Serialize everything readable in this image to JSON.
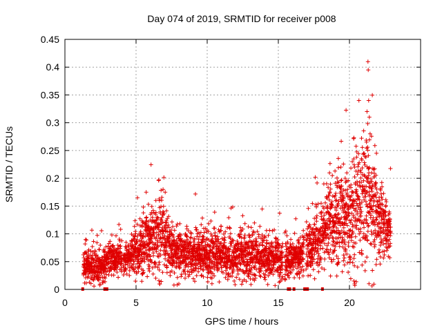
{
  "chart_data": {
    "type": "scatter",
    "title": "Day 074 of 2019, SRMTID for receiver p008",
    "xlabel": "GPS time / hours",
    "ylabel": "SRMTID / TECUs",
    "xlim": [
      0,
      25
    ],
    "ylim": [
      0,
      0.45
    ],
    "xticks": [
      0,
      5,
      10,
      15,
      20
    ],
    "xtick_labels": [
      "0",
      "5",
      "10",
      "15",
      "20"
    ],
    "yticks": [
      0,
      0.05,
      0.1,
      0.15,
      0.2,
      0.25,
      0.3,
      0.35,
      0.4,
      0.45
    ],
    "ytick_labels": [
      "0",
      "0.05",
      "0.1",
      "0.15",
      "0.2",
      "0.25",
      "0.3",
      "0.35",
      "0.4",
      "0.45"
    ],
    "grid": true,
    "marker": "plus",
    "color": "#e00000",
    "series": [
      {
        "name": "SRMTID",
        "x_range": [
          1.3,
          22.9
        ],
        "points_per_hour": 120,
        "profile": [
          {
            "x": 1.3,
            "median": 0.045,
            "spread": 0.012
          },
          {
            "x": 2.5,
            "median": 0.035,
            "spread": 0.015
          },
          {
            "x": 3.0,
            "median": 0.055,
            "spread": 0.012
          },
          {
            "x": 4.5,
            "median": 0.06,
            "spread": 0.015
          },
          {
            "x": 5.5,
            "median": 0.075,
            "spread": 0.025
          },
          {
            "x": 6.7,
            "median": 0.1,
            "spread": 0.035
          },
          {
            "x": 7.5,
            "median": 0.07,
            "spread": 0.02
          },
          {
            "x": 9.5,
            "median": 0.065,
            "spread": 0.02
          },
          {
            "x": 12.0,
            "median": 0.06,
            "spread": 0.02
          },
          {
            "x": 14.5,
            "median": 0.06,
            "spread": 0.02
          },
          {
            "x": 15.5,
            "median": 0.05,
            "spread": 0.015
          },
          {
            "x": 16.5,
            "median": 0.06,
            "spread": 0.015
          },
          {
            "x": 17.5,
            "median": 0.085,
            "spread": 0.025
          },
          {
            "x": 18.5,
            "median": 0.12,
            "spread": 0.035
          },
          {
            "x": 20.0,
            "median": 0.12,
            "spread": 0.045
          },
          {
            "x": 21.3,
            "median": 0.17,
            "spread": 0.06
          },
          {
            "x": 22.3,
            "median": 0.12,
            "spread": 0.03
          },
          {
            "x": 22.9,
            "median": 0.11,
            "spread": 0.02
          }
        ],
        "gaps": [
          [
            4.0,
            4.1
          ],
          [
            15.3,
            15.45
          ],
          [
            16.8,
            16.95
          ]
        ],
        "outliers": [
          {
            "x": 21.3,
            "y": 0.41
          },
          {
            "x": 21.32,
            "y": 0.395
          },
          {
            "x": 21.35,
            "y": 0.34
          },
          {
            "x": 21.4,
            "y": 0.31
          },
          {
            "x": 21.45,
            "y": 0.28
          },
          {
            "x": 21.2,
            "y": 0.265
          },
          {
            "x": 20.2,
            "y": 0.23
          },
          {
            "x": 20.3,
            "y": 0.235
          },
          {
            "x": 21.0,
            "y": 0.245
          },
          {
            "x": 21.9,
            "y": 0.245
          },
          {
            "x": 5.1,
            "y": 0.165
          },
          {
            "x": 6.9,
            "y": 0.18
          },
          {
            "x": 7.05,
            "y": 0.175
          },
          {
            "x": 18.2,
            "y": 0.19
          },
          {
            "x": 19.4,
            "y": 0.22
          },
          {
            "x": 19.7,
            "y": 0.2
          }
        ],
        "zero_points_x": [
          1.25,
          2.8,
          2.85,
          2.9,
          2.95,
          15.7,
          15.8,
          16.1,
          16.85,
          16.9,
          16.95,
          17.0,
          17.05,
          18.1
        ]
      }
    ]
  }
}
